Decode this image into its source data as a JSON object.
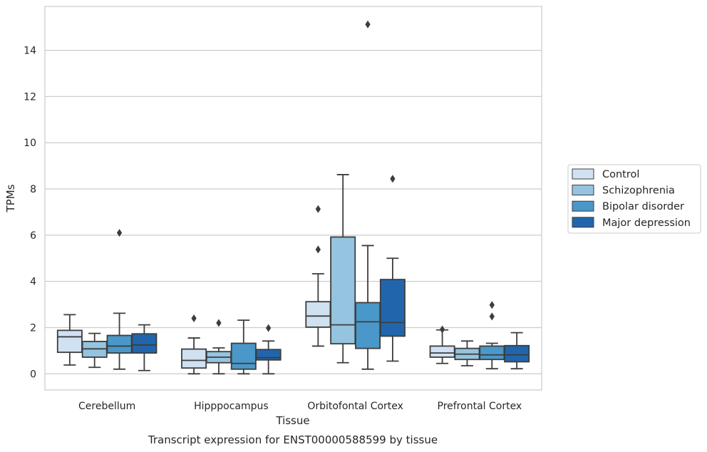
{
  "chart_data": {
    "type": "box",
    "title": "Transcript expression for ENST00000588599 by tissue",
    "xlabel": "Tissue",
    "ylabel": "TPMs",
    "ylim": [
      -0.7,
      15.9
    ],
    "yticks": [
      0,
      2,
      4,
      6,
      8,
      10,
      12,
      14
    ],
    "grid": "horizontal",
    "legend_position": "right",
    "categories": [
      "Cerebellum",
      "Hipppocampus",
      "Orbitofontal Cortex",
      "Prefrontal Cortex"
    ],
    "series": [
      {
        "name": "Control",
        "color": "#d0e1f2",
        "boxes": [
          {
            "whisker_low": 0.38,
            "q1": 0.93,
            "median": 1.6,
            "q3": 1.88,
            "whisker_high": 2.56,
            "outliers": []
          },
          {
            "whisker_low": 0.0,
            "q1": 0.25,
            "median": 0.58,
            "q3": 1.07,
            "whisker_high": 1.55,
            "outliers": [
              2.4
            ]
          },
          {
            "whisker_low": 1.2,
            "q1": 2.02,
            "median": 2.5,
            "q3": 3.12,
            "whisker_high": 4.33,
            "outliers": [
              5.38,
              7.13
            ]
          },
          {
            "whisker_low": 0.45,
            "q1": 0.72,
            "median": 0.9,
            "q3": 1.2,
            "whisker_high": 1.9,
            "outliers": [
              1.92
            ]
          }
        ]
      },
      {
        "name": "Schizophrenia",
        "color": "#94c4df",
        "boxes": [
          {
            "whisker_low": 0.28,
            "q1": 0.72,
            "median": 1.08,
            "q3": 1.4,
            "whisker_high": 1.75,
            "outliers": []
          },
          {
            "whisker_low": 0.0,
            "q1": 0.48,
            "median": 0.72,
            "q3": 0.96,
            "whisker_high": 1.12,
            "outliers": [
              2.2
            ]
          },
          {
            "whisker_low": 0.48,
            "q1": 1.3,
            "median": 2.12,
            "q3": 5.92,
            "whisker_high": 8.62,
            "outliers": []
          },
          {
            "whisker_low": 0.35,
            "q1": 0.62,
            "median": 0.85,
            "q3": 1.1,
            "whisker_high": 1.42,
            "outliers": []
          }
        ]
      },
      {
        "name": "Bipolar disorder",
        "color": "#4a98c9",
        "boxes": [
          {
            "whisker_low": 0.2,
            "q1": 0.9,
            "median": 1.2,
            "q3": 1.66,
            "whisker_high": 2.62,
            "outliers": [
              6.1
            ]
          },
          {
            "whisker_low": 0.0,
            "q1": 0.2,
            "median": 0.45,
            "q3": 1.32,
            "whisker_high": 2.32,
            "outliers": []
          },
          {
            "whisker_low": 0.2,
            "q1": 1.1,
            "median": 2.25,
            "q3": 3.08,
            "whisker_high": 5.55,
            "outliers": [
              15.12
            ]
          },
          {
            "whisker_low": 0.22,
            "q1": 0.62,
            "median": 0.82,
            "q3": 1.2,
            "whisker_high": 1.32,
            "outliers": [
              2.48,
              2.98
            ]
          }
        ]
      },
      {
        "name": "Major depression",
        "color": "#2166ac",
        "boxes": [
          {
            "whisker_low": 0.14,
            "q1": 0.9,
            "median": 1.25,
            "q3": 1.73,
            "whisker_high": 2.12,
            "outliers": []
          },
          {
            "whisker_low": 0.0,
            "q1": 0.6,
            "median": 0.7,
            "q3": 1.05,
            "whisker_high": 1.42,
            "outliers": [
              1.98
            ]
          },
          {
            "whisker_low": 0.55,
            "q1": 1.63,
            "median": 2.22,
            "q3": 4.08,
            "whisker_high": 5.0,
            "outliers": [
              8.44
            ]
          },
          {
            "whisker_low": 0.22,
            "q1": 0.52,
            "median": 0.82,
            "q3": 1.22,
            "whisker_high": 1.78,
            "outliers": []
          }
        ]
      }
    ]
  }
}
